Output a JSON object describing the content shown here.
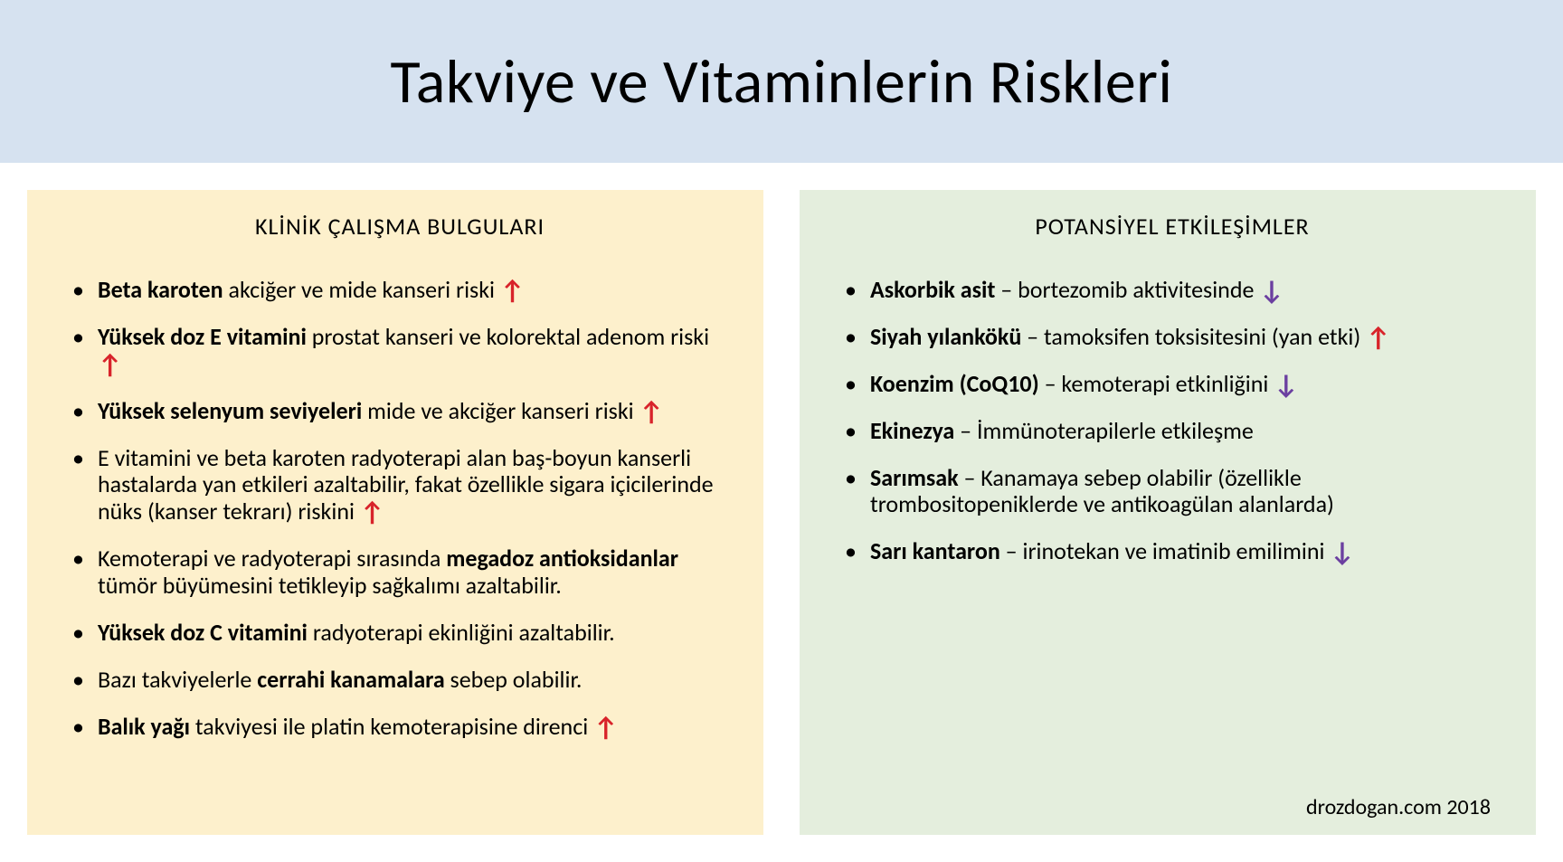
{
  "colors": {
    "titleBg": "#d6e2f0",
    "leftBg": "#fdf0cc",
    "rightBg": "#e4eedd",
    "text": "#000000",
    "arrowUp": "#d8232a",
    "arrowDown": "#6b3fa0"
  },
  "title": "Takviye ve Vitaminlerin Riskleri",
  "left": {
    "heading": "KLİNİK ÇALIŞMA BULGULARI",
    "items": [
      {
        "segments": [
          {
            "t": "Beta karoten ",
            "b": true
          },
          {
            "t": "akciğer ve mide kanseri riski "
          },
          {
            "arrow": "up"
          }
        ]
      },
      {
        "segments": [
          {
            "t": "Yüksek doz E vitamini ",
            "b": true
          },
          {
            "t": "prostat kanseri ve kolorektal adenom riski "
          },
          {
            "arrow": "up"
          }
        ]
      },
      {
        "segments": [
          {
            "t": "Yüksek selenyum seviyeleri ",
            "b": true
          },
          {
            "t": "mide ve akciğer kanseri riski "
          },
          {
            "arrow": "up"
          }
        ]
      },
      {
        "segments": [
          {
            "t": "E vitamini ve beta karoten radyoterapi alan baş-boyun kanserli hastalarda yan etkileri azaltabilir, fakat özellikle sigara içicilerinde nüks (kanser tekrarı) riskini "
          },
          {
            "arrow": "up"
          }
        ]
      },
      {
        "segments": [
          {
            "t": "Kemoterapi ve radyoterapi sırasında "
          },
          {
            "t": "megadoz antioksidanlar ",
            "b": true
          },
          {
            "t": "tümör büyümesini tetikleyip sağkalımı azaltabilir."
          }
        ]
      },
      {
        "segments": [
          {
            "t": "Yüksek doz C vitamini ",
            "b": true
          },
          {
            "t": "radyoterapi ekinliğini azaltabilir."
          }
        ]
      },
      {
        "segments": [
          {
            "t": "Bazı takviyelerle "
          },
          {
            "t": "cerrahi kanamalara ",
            "b": true
          },
          {
            "t": "sebep olabilir."
          }
        ]
      },
      {
        "segments": [
          {
            "t": "Balık yağı ",
            "b": true
          },
          {
            "t": "takviyesi ile platin kemoterapisine direnci "
          },
          {
            "arrow": "up"
          }
        ]
      }
    ]
  },
  "right": {
    "heading": "POTANSİYEL ETKİLEŞİMLER",
    "items": [
      {
        "segments": [
          {
            "t": "Askorbik asit ",
            "b": true
          },
          {
            "t": "– bortezomib aktivitesinde "
          },
          {
            "arrow": "down"
          }
        ]
      },
      {
        "segments": [
          {
            "t": "Siyah yılankökü ",
            "b": true
          },
          {
            "t": "– tamoksifen toksisitesini (yan etki) "
          },
          {
            "arrow": "up"
          }
        ]
      },
      {
        "segments": [
          {
            "t": "Koenzim (CoQ10) ",
            "b": true
          },
          {
            "t": "– kemoterapi etkinliğini "
          },
          {
            "arrow": "down"
          }
        ]
      },
      {
        "segments": [
          {
            "t": "Ekinezya ",
            "b": true
          },
          {
            "t": "– İmmünoterapilerle etkileşme"
          }
        ]
      },
      {
        "segments": [
          {
            "t": "Sarımsak ",
            "b": true
          },
          {
            "t": "– Kanamaya sebep olabilir (özellikle trombositopeniklerde ve antikoagülan alanlarda)"
          }
        ]
      },
      {
        "segments": [
          {
            "t": "Sarı kantaron ",
            "b": true
          },
          {
            "t": "– irinotekan ve imatinib emilimini "
          },
          {
            "arrow": "down"
          }
        ]
      }
    ]
  },
  "footer": "drozdogan.com 2018"
}
